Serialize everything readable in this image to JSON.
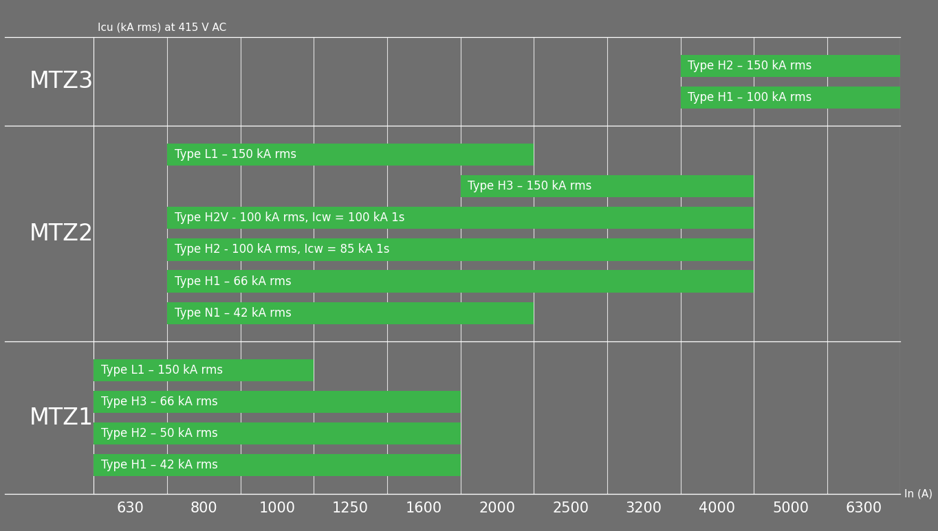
{
  "chart_data": {
    "type": "range_bar",
    "orientation": "horizontal",
    "y_label": "Icu (kA rms) at 415 V AC",
    "x_label": "In (A)",
    "categories": [
      "630",
      "800",
      "1000",
      "1250",
      "1600",
      "2000",
      "2500",
      "3200",
      "4000",
      "5000",
      "6300"
    ],
    "tick_labels": "x",
    "color": "#3cb44a",
    "groups": [
      {
        "name": "MTZ1",
        "bars": [
          {
            "label": "Type L1 – 150 kA rms",
            "start": "630",
            "end": "1000"
          },
          {
            "label": "Type H3 – 66 kA rms",
            "start": "630",
            "end": "1600"
          },
          {
            "label": "Type H2 – 50 kA rms",
            "start": "630",
            "end": "1600"
          },
          {
            "label": "Type H1 – 42 kA rms",
            "start": "630",
            "end": "1600"
          }
        ]
      },
      {
        "name": "MTZ2",
        "bars": [
          {
            "label": "Type L1 – 150 kA rms",
            "start": "800",
            "end": "2000"
          },
          {
            "label": "Type H3 – 150 kA rms",
            "start": "2000",
            "end": "4000"
          },
          {
            "label": "Type H2V - 100 kA rms, Icw = 100 kA 1s",
            "start": "800",
            "end": "4000"
          },
          {
            "label": "Type H2 - 100 kA rms, Icw = 85 kA 1s",
            "start": "800",
            "end": "4000"
          },
          {
            "label": "Type H1 – 66 kA rms",
            "start": "800",
            "end": "4000"
          },
          {
            "label": "Type N1 – 42 kA rms",
            "start": "800",
            "end": "2000"
          }
        ]
      },
      {
        "name": "MTZ3",
        "bars": [
          {
            "label": "Type H2 – 150 kA rms",
            "start": "4000",
            "end": "6300"
          },
          {
            "label": "Type H1 – 100 kA rms",
            "start": "4000",
            "end": "6300"
          }
        ]
      }
    ]
  }
}
